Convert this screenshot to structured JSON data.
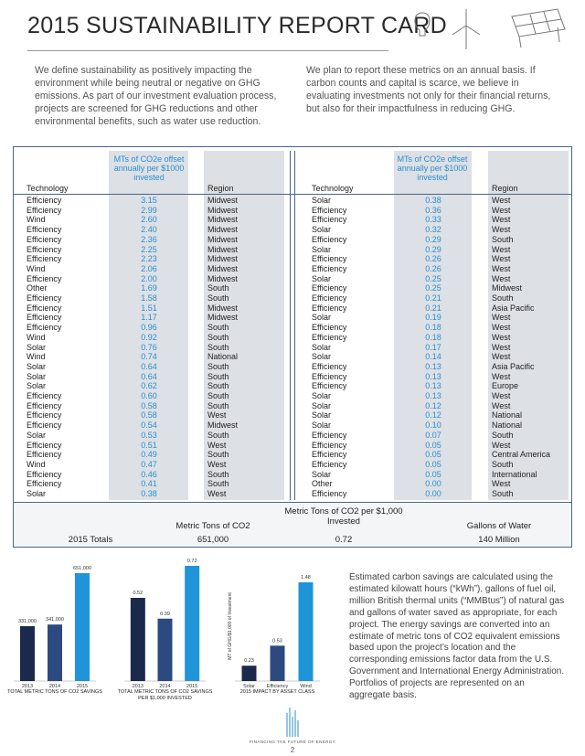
{
  "header": {
    "title": "2015 SUSTAINABILITY REPORT CARD"
  },
  "intro": [
    "We define sustainability as positively impacting the environment while being neutral or negative on GHG emissions. As part of our investment evaluation process, projects are screened for GHG reductions and other environmental benefits, such as water use reduction.",
    "We plan to report these metrics on an annual basis. If carbon counts and capital is scarce, we believe in evaluating investments not only for their financial returns, but also for their impactfulness in reducing GHG."
  ],
  "table": {
    "columns": [
      "Technology",
      "MTs of CO2e offset annually per $1000 invested",
      "Region"
    ],
    "left_rows": [
      [
        "Efficiency",
        "3.15",
        "Midwest"
      ],
      [
        "Efficiency",
        "2.99",
        "Midwest"
      ],
      [
        "Wind",
        "2.60",
        "Midwest"
      ],
      [
        "Efficiency",
        "2.40",
        "Midwest"
      ],
      [
        "Efficiency",
        "2.36",
        "Midwest"
      ],
      [
        "Efficiency",
        "2.25",
        "Midwest"
      ],
      [
        "Efficiency",
        "2.23",
        "Midwest"
      ],
      [
        "Wind",
        "2.06",
        "Midwest"
      ],
      [
        "Efficiency",
        "2.00",
        "Midwest"
      ],
      [
        "Other",
        "1.69",
        "South"
      ],
      [
        "Efficiency",
        "1.58",
        "South"
      ],
      [
        "Efficiency",
        "1.51",
        "Midwest"
      ],
      [
        "Efficiency",
        "1.17",
        "Midwest"
      ],
      [
        "Efficiency",
        "0.96",
        "South"
      ],
      [
        "Wind",
        "0.92",
        "South"
      ],
      [
        "Solar",
        "0.76",
        "South"
      ],
      [
        "Wind",
        "0.74",
        "National"
      ],
      [
        "Solar",
        "0.64",
        "South"
      ],
      [
        "Solar",
        "0.64",
        "South"
      ],
      [
        "Solar",
        "0.62",
        "South"
      ],
      [
        "Efficiency",
        "0.60",
        "South"
      ],
      [
        "Efficiency",
        "0.58",
        "South"
      ],
      [
        "Efficiency",
        "0.58",
        "West"
      ],
      [
        "Efficiency",
        "0.54",
        "Midwest"
      ],
      [
        "Solar",
        "0.53",
        "South"
      ],
      [
        "Efficiency",
        "0.51",
        "West"
      ],
      [
        "Efficiency",
        "0.49",
        "South"
      ],
      [
        "Wind",
        "0.47",
        "West"
      ],
      [
        "Efficiency",
        "0.46",
        "South"
      ],
      [
        "Efficiency",
        "0.41",
        "South"
      ],
      [
        "Solar",
        "0.38",
        "West"
      ]
    ],
    "right_rows": [
      [
        "Solar",
        "0.38",
        "West"
      ],
      [
        "Efficiency",
        "0.36",
        "West"
      ],
      [
        "Efficiency",
        "0.33",
        "West"
      ],
      [
        "Solar",
        "0.32",
        "West"
      ],
      [
        "Efficiency",
        "0.29",
        "South"
      ],
      [
        "Solar",
        "0.29",
        "West"
      ],
      [
        "Efficiency",
        "0.26",
        "West"
      ],
      [
        "Efficiency",
        "0.26",
        "West"
      ],
      [
        "Solar",
        "0.25",
        "West"
      ],
      [
        "Efficiency",
        "0.25",
        "Midwest"
      ],
      [
        "Efficiency",
        "0.21",
        "South"
      ],
      [
        "Efficiency",
        "0.21",
        "Asia Pacific"
      ],
      [
        "Solar",
        "0.19",
        "West"
      ],
      [
        "Efficiency",
        "0.18",
        "West"
      ],
      [
        "Efficiency",
        "0.18",
        "West"
      ],
      [
        "Solar",
        "0.17",
        "West"
      ],
      [
        "Solar",
        "0.14",
        "West"
      ],
      [
        "Efficiency",
        "0.13",
        "Asia Pacific"
      ],
      [
        "Efficiency",
        "0.13",
        "West"
      ],
      [
        "Efficiency",
        "0.13",
        "Europe"
      ],
      [
        "Solar",
        "0.13",
        "West"
      ],
      [
        "Solar",
        "0.12",
        "West"
      ],
      [
        "Solar",
        "0.12",
        "National"
      ],
      [
        "Solar",
        "0.10",
        "National"
      ],
      [
        "Efficiency",
        "0.07",
        "South"
      ],
      [
        "Efficiency",
        "0.05",
        "West"
      ],
      [
        "Efficiency",
        "0.05",
        "Central America"
      ],
      [
        "Efficiency",
        "0.05",
        "South"
      ],
      [
        "Solar",
        "0.05",
        "International"
      ],
      [
        "Other",
        "0.00",
        "West"
      ],
      [
        "Efficiency",
        "0.00",
        "South"
      ]
    ]
  },
  "totals": {
    "headers": [
      "Metric Tons of CO2",
      "Metric Tons of CO2 per $1,000 Invested",
      "Gallons of Water"
    ],
    "label": "2015 Totals",
    "values": [
      "651,000",
      "0.72",
      "140 Million"
    ]
  },
  "chart_data": [
    {
      "type": "bar",
      "caption": "TOTAL METRIC TONS OF CO2 SAVINGS",
      "categories": [
        "2013",
        "2014",
        "2015"
      ],
      "values": [
        331000,
        341000,
        651000
      ],
      "value_labels": [
        "331,000",
        "341,000",
        "651,000"
      ],
      "colors": [
        "#1b2a4c",
        "#2c4a80",
        "#1f94d8"
      ]
    },
    {
      "type": "bar",
      "caption": "TOTAL METRIC TONS OF CO2 SAVINGS PER $1,000 INVESTED",
      "categories": [
        "2013",
        "2014",
        "2015"
      ],
      "values": [
        0.52,
        0.39,
        0.72
      ],
      "colors": [
        "#1b2a4c",
        "#2c4a80",
        "#1f94d8"
      ]
    },
    {
      "type": "bar",
      "caption": "2015 IMPACT BY ASSET CLASS",
      "ylabel": "MT of GHG/$1,000 of Investment",
      "categories": [
        "Solar",
        "Efficiency",
        "Wind"
      ],
      "values": [
        0.23,
        0.53,
        1.48
      ],
      "colors": [
        "#1b2a4c",
        "#2c4a80",
        "#1f94d8"
      ]
    }
  ],
  "note": "Estimated carbon savings are calculated using the estimated kilowatt hours (“kWh”), gallons of fuel oil, million British thermal units (“MMBtus”) of natural gas and gallons of water saved as appropriate, for each project. The energy savings are converted into an estimate of metric tons of CO2 equivalent emissions based upon the project’s location and the corresponding emissions factor data from the U.S. Government and International Energy Administration. Portfolios of projects are represented on an aggregate basis.",
  "footer": {
    "tagline": "FINANCING THE FUTURE OF ENERGY",
    "page": "2"
  }
}
